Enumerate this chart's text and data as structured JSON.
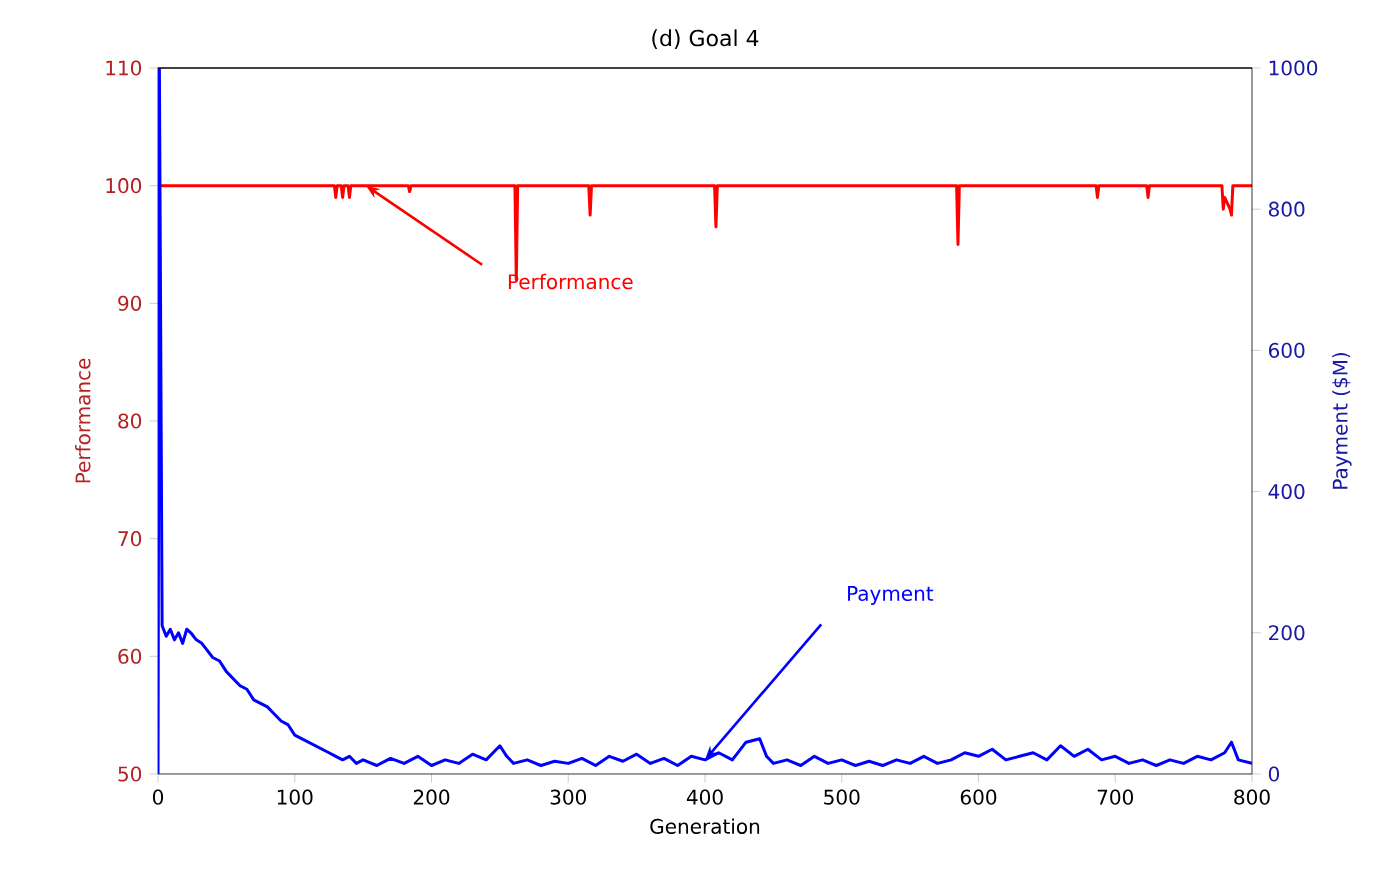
{
  "chart_data": {
    "type": "line",
    "title": "(d) Goal 4",
    "xlabel": "Generation",
    "ylabel": "Performance",
    "y2label": "Payment ($M)",
    "xlim": [
      0,
      800
    ],
    "xticks": [
      0,
      100,
      200,
      300,
      400,
      500,
      600,
      700,
      800
    ],
    "ylim": [
      50,
      110
    ],
    "yticks": [
      50,
      60,
      70,
      80,
      90,
      100,
      110
    ],
    "y2lim": [
      0,
      1000
    ],
    "y2ticks": [
      0,
      200,
      400,
      600,
      800,
      1000
    ],
    "series": [
      {
        "name": "Performance",
        "color": "#ff0000",
        "x": [
          0,
          129,
          130,
          131,
          134,
          135,
          136,
          139,
          140,
          141,
          183,
          184,
          185,
          261,
          262,
          263,
          315,
          316,
          317,
          407,
          408,
          409,
          584,
          585,
          586,
          686,
          687,
          688,
          723,
          724,
          725,
          778,
          779,
          780,
          784,
          785,
          786,
          800
        ],
        "values": [
          100,
          100,
          99,
          100,
          100,
          99,
          100,
          100,
          99,
          100,
          100,
          99.5,
          100,
          100,
          92,
          100,
          100,
          97.5,
          100,
          100,
          96.5,
          100,
          100,
          95,
          100,
          100,
          99,
          100,
          100,
          99,
          100,
          100,
          98,
          99,
          98,
          97.5,
          100,
          100
        ]
      },
      {
        "name": "Payment",
        "color": "#0000ff",
        "axis": "y2",
        "x": [
          0,
          1,
          3,
          6,
          9,
          12,
          15,
          18,
          21,
          24,
          28,
          32,
          36,
          40,
          45,
          50,
          55,
          60,
          65,
          70,
          75,
          80,
          85,
          90,
          95,
          100,
          105,
          110,
          115,
          120,
          125,
          130,
          135,
          140,
          145,
          150,
          160,
          170,
          180,
          190,
          200,
          210,
          220,
          230,
          240,
          250,
          255,
          260,
          270,
          280,
          290,
          300,
          310,
          320,
          330,
          340,
          350,
          360,
          370,
          380,
          390,
          400,
          410,
          420,
          430,
          440,
          445,
          450,
          460,
          470,
          480,
          490,
          500,
          510,
          520,
          530,
          540,
          550,
          560,
          570,
          580,
          590,
          600,
          610,
          620,
          630,
          640,
          650,
          660,
          670,
          680,
          690,
          700,
          710,
          720,
          730,
          740,
          750,
          760,
          770,
          780,
          785,
          790,
          800
        ],
        "values": [
          0,
          1000,
          210,
          195,
          205,
          190,
          200,
          185,
          205,
          200,
          190,
          185,
          175,
          165,
          160,
          145,
          135,
          125,
          120,
          105,
          100,
          95,
          85,
          75,
          70,
          55,
          50,
          45,
          40,
          35,
          30,
          25,
          20,
          25,
          15,
          20,
          12,
          22,
          15,
          25,
          12,
          20,
          15,
          28,
          20,
          40,
          25,
          15,
          20,
          12,
          18,
          15,
          22,
          12,
          25,
          18,
          28,
          15,
          22,
          12,
          25,
          20,
          30,
          20,
          45,
          50,
          25,
          15,
          20,
          12,
          25,
          15,
          20,
          12,
          18,
          12,
          20,
          15,
          25,
          15,
          20,
          30,
          25,
          35,
          20,
          25,
          30,
          20,
          40,
          25,
          35,
          20,
          25,
          15,
          20,
          12,
          20,
          15,
          25,
          20,
          30,
          45,
          20,
          15
        ]
      }
    ],
    "legend": false
  }
}
